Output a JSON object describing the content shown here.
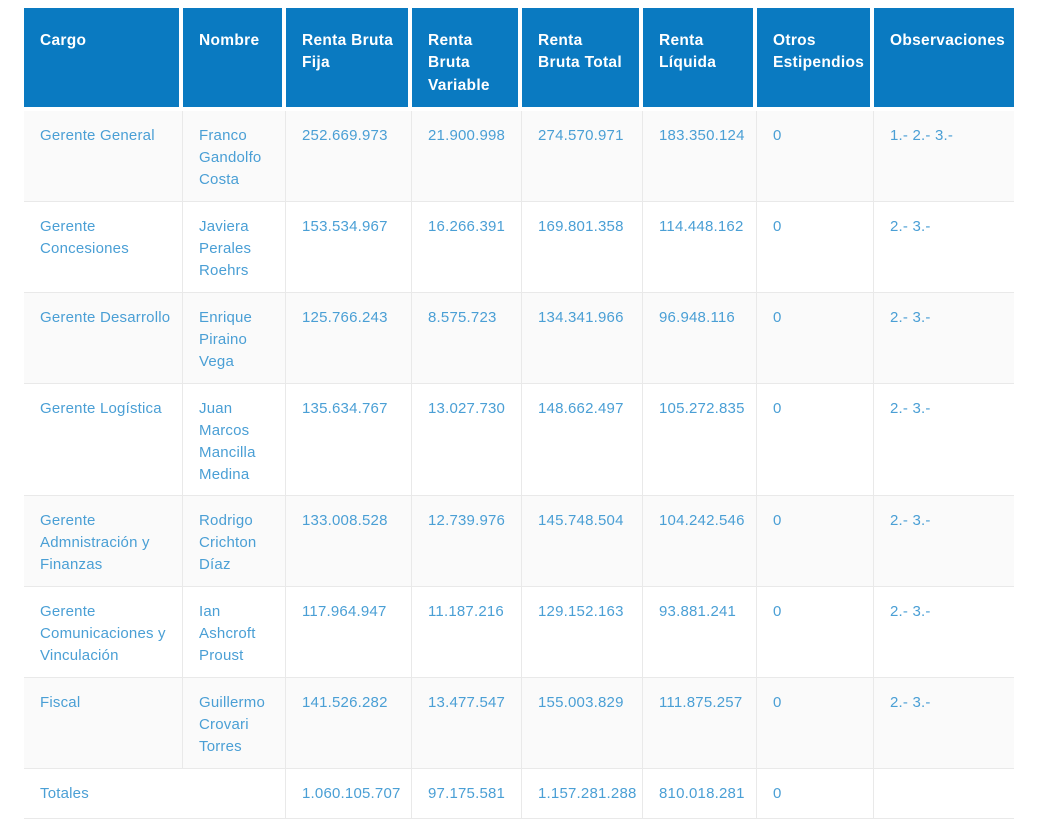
{
  "theme": {
    "header_bg": "#0a7ac1",
    "header_text": "#ffffff",
    "cell_text": "#4a9fd5",
    "row_odd_bg": "#fafafa",
    "row_even_bg": "#ffffff",
    "border": "#e9e9e9",
    "page_bg": "#ffffff"
  },
  "table": {
    "columns": [
      {
        "key": "cargo",
        "label": "Cargo"
      },
      {
        "key": "nombre",
        "label": "Nombre"
      },
      {
        "key": "renta_bruta_fija",
        "label": "Renta Bruta Fija"
      },
      {
        "key": "renta_bruta_variable",
        "label": "Renta Bruta Variable"
      },
      {
        "key": "renta_bruta_total",
        "label": "Renta Bruta Total"
      },
      {
        "key": "renta_liquida",
        "label": "Renta Líquida"
      },
      {
        "key": "otros_estipendios",
        "label": "Otros Estipendios"
      },
      {
        "key": "observaciones",
        "label": "Observaciones"
      }
    ],
    "rows": [
      {
        "cargo": "Gerente General",
        "nombre": "Franco Gandolfo Costa",
        "renta_bruta_fija": "252.669.973",
        "renta_bruta_variable": "21.900.998",
        "renta_bruta_total": "274.570.971",
        "renta_liquida": "183.350.124",
        "otros_estipendios": "0",
        "observaciones": "1.- 2.- 3.-"
      },
      {
        "cargo": "Gerente Concesiones",
        "nombre": "Javiera Perales Roehrs",
        "renta_bruta_fija": "153.534.967",
        "renta_bruta_variable": "16.266.391",
        "renta_bruta_total": "169.801.358",
        "renta_liquida": "114.448.162",
        "otros_estipendios": "0",
        "observaciones": "2.- 3.-"
      },
      {
        "cargo": "Gerente Desarrollo",
        "nombre": "Enrique Piraino Vega",
        "renta_bruta_fija": "125.766.243",
        "renta_bruta_variable": "8.575.723",
        "renta_bruta_total": "134.341.966",
        "renta_liquida": "96.948.116",
        "otros_estipendios": "0",
        "observaciones": "2.- 3.-"
      },
      {
        "cargo": "Gerente Logística",
        "nombre": "Juan Marcos Mancilla Medina",
        "renta_bruta_fija": "135.634.767",
        "renta_bruta_variable": "13.027.730",
        "renta_bruta_total": "148.662.497",
        "renta_liquida": "105.272.835",
        "otros_estipendios": "0",
        "observaciones": "2.- 3.-"
      },
      {
        "cargo": "Gerente Admnistración y Finanzas",
        "nombre": "Rodrigo Crichton Díaz",
        "renta_bruta_fija": "133.008.528",
        "renta_bruta_variable": "12.739.976",
        "renta_bruta_total": "145.748.504",
        "renta_liquida": "104.242.546",
        "otros_estipendios": "0",
        "observaciones": "2.- 3.-"
      },
      {
        "cargo": "Gerente Comunicaciones y Vinculación",
        "nombre": "Ian Ashcroft Proust",
        "renta_bruta_fija": "117.964.947",
        "renta_bruta_variable": "11.187.216",
        "renta_bruta_total": "129.152.163",
        "renta_liquida": "93.881.241",
        "otros_estipendios": "0",
        "observaciones": "2.- 3.-"
      },
      {
        "cargo": "Fiscal",
        "nombre": "Guillermo Crovari Torres",
        "renta_bruta_fija": "141.526.282",
        "renta_bruta_variable": "13.477.547",
        "renta_bruta_total": "155.003.829",
        "renta_liquida": "111.875.257",
        "otros_estipendios": "0",
        "observaciones": "2.- 3.-"
      }
    ],
    "totals": {
      "label": "Totales",
      "renta_bruta_fija": "1.060.105.707",
      "renta_bruta_variable": "97.175.581",
      "renta_bruta_total": "1.157.281.288",
      "renta_liquida": "810.018.281",
      "otros_estipendios": "0",
      "observaciones": ""
    }
  }
}
